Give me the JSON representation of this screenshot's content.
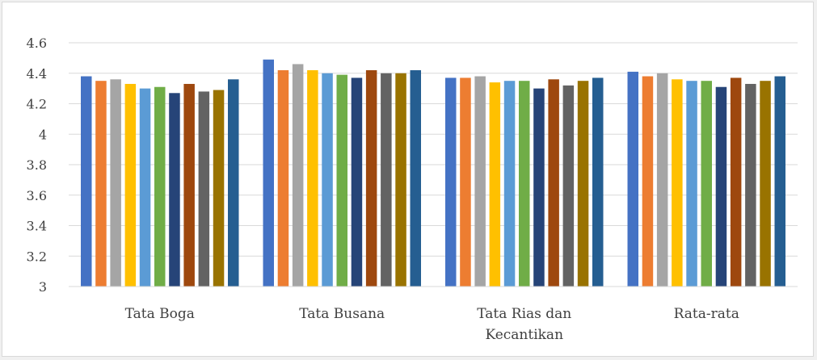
{
  "chart_data": {
    "type": "bar",
    "title": "",
    "xlabel": "",
    "ylabel": "",
    "ylim": [
      3,
      4.6
    ],
    "yticks": [
      "3",
      "3.2",
      "3.4",
      "3.6",
      "3.8",
      "4",
      "4.2",
      "4.4",
      "4.6"
    ],
    "grid": true,
    "legend": "none",
    "categories": [
      [
        "Tata Boga"
      ],
      [
        "Tata  Busana"
      ],
      [
        "Tata Rias dan",
        "Kecantikan"
      ],
      [
        "Rata-rata"
      ]
    ],
    "series": [
      {
        "color": "#4472C4",
        "values": [
          4.38,
          4.49,
          4.37,
          4.41
        ]
      },
      {
        "color": "#ED7D31",
        "values": [
          4.35,
          4.42,
          4.37,
          4.38
        ]
      },
      {
        "color": "#A5A5A5",
        "values": [
          4.36,
          4.46,
          4.38,
          4.4
        ]
      },
      {
        "color": "#FFC000",
        "values": [
          4.33,
          4.42,
          4.34,
          4.36
        ]
      },
      {
        "color": "#5B9BD5",
        "values": [
          4.3,
          4.4,
          4.35,
          4.35
        ]
      },
      {
        "color": "#70AD47",
        "values": [
          4.31,
          4.39,
          4.35,
          4.35
        ]
      },
      {
        "color": "#264478",
        "values": [
          4.27,
          4.37,
          4.3,
          4.31
        ]
      },
      {
        "color": "#9E480E",
        "values": [
          4.33,
          4.42,
          4.36,
          4.37
        ]
      },
      {
        "color": "#636363",
        "values": [
          4.28,
          4.4,
          4.32,
          4.33
        ]
      },
      {
        "color": "#997300",
        "values": [
          4.29,
          4.4,
          4.35,
          4.35
        ]
      },
      {
        "color": "#255E91",
        "values": [
          4.36,
          4.42,
          4.37,
          4.38
        ]
      }
    ]
  }
}
